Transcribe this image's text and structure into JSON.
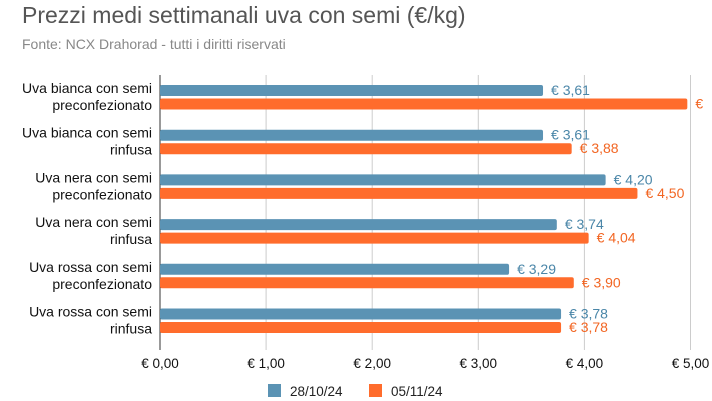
{
  "chart_data": {
    "type": "bar",
    "orientation": "horizontal",
    "title": "Prezzi medi settimanali uva con semi (€/kg)",
    "subtitle": "Fonte: NCX Drahorad - tutti i diritti riservati",
    "categories": [
      [
        "Uva bianca con semi",
        "preconfezionato"
      ],
      [
        "Uva bianca con semi",
        "rinfusa"
      ],
      [
        "Uva nera con semi",
        "preconfezionato"
      ],
      [
        "Uva nera con semi",
        "rinfusa"
      ],
      [
        "Uva rossa con semi",
        "preconfezionato"
      ],
      [
        "Uva rossa con semi",
        "rinfusa"
      ]
    ],
    "series": [
      {
        "name": "28/10/24",
        "color": "#5b93b4",
        "label_color": "#4a86a8",
        "values": [
          3.61,
          3.61,
          4.2,
          3.74,
          3.29,
          3.78
        ],
        "labels": [
          "€ 3,61",
          "€ 3,61",
          "€ 4,20",
          "€ 3,74",
          "€ 3,29",
          "€ 3,78"
        ]
      },
      {
        "name": "05/11/24",
        "color": "#ff6c2c",
        "label_color": "#f26522",
        "values": [
          4.97,
          3.88,
          4.5,
          4.04,
          3.9,
          3.78
        ],
        "labels": [
          "€",
          "€ 3,88",
          "€ 4,50",
          "€ 4,04",
          "€ 3,90",
          "€ 3,78"
        ]
      }
    ],
    "xlim": [
      0,
      5
    ],
    "xticks": [
      "€ 0,00",
      "€ 1,00",
      "€ 2,00",
      "€ 3,00",
      "€ 4,00",
      "€ 5,00"
    ],
    "grid": true,
    "legend": "bottom"
  }
}
